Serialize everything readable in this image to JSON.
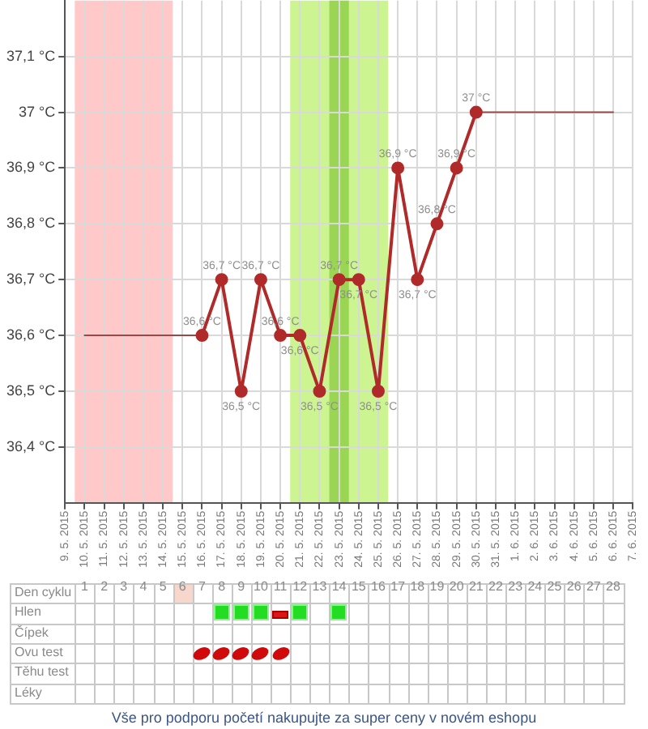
{
  "chart_data": [
    {
      "type": "line",
      "categories": [
        "9. 5. 2015",
        "10. 5. 2015",
        "11. 5. 2015",
        "12. 5. 2015",
        "13. 5. 2015",
        "14. 5. 2015",
        "15. 5. 2015",
        "16. 5. 2015",
        "17. 5. 2015",
        "18. 5. 2015",
        "19. 5. 2015",
        "20. 5. 2015",
        "21. 5. 2015",
        "22. 5. 2015",
        "23. 5. 2015",
        "24. 5. 2015",
        "25. 5. 2015",
        "26. 5. 2015",
        "27. 5. 2015",
        "28. 5. 2015",
        "29. 5. 2015",
        "30. 5. 2015",
        "31. 5. 2015",
        "1. 6. 2015",
        "2. 6. 2015",
        "3. 6. 2015",
        "4. 6. 2015",
        "5. 6. 2015",
        "6. 6. 2015",
        "7. 6. 2015"
      ],
      "series": [
        {
          "color": "#b02a2a",
          "values": [
            null,
            null,
            null,
            null,
            null,
            null,
            null,
            36.6,
            36.7,
            36.5,
            36.7,
            36.6,
            36.6,
            36.5,
            36.7,
            36.7,
            36.5,
            36.9,
            36.7,
            36.8,
            36.9,
            37.0,
            null,
            null,
            null,
            null,
            null,
            null,
            null,
            null
          ],
          "value_labels": [
            null,
            null,
            null,
            null,
            null,
            null,
            null,
            "36,6 °C",
            "36,7 °C",
            "36,5 °C",
            "36,7 °C",
            "36,6 °C",
            "36,6 °C",
            "36,5 °C",
            "36,7 °C",
            "36,7 °C",
            "36,5 °C",
            "36,9 °C",
            "36,7 °C",
            "36,8 °C",
            "36,9 °C",
            "37 °C",
            null,
            null,
            null,
            null,
            null,
            null,
            null,
            null
          ]
        },
        {
          "color": "#9a4848",
          "marker": "none",
          "values": [
            null,
            36.6,
            36.6,
            36.6,
            36.6,
            36.6,
            36.6,
            36.6,
            null,
            null,
            null,
            null,
            null,
            null,
            null,
            null,
            null,
            null,
            null,
            null,
            null,
            null,
            null,
            null,
            null,
            null,
            null,
            null,
            null,
            null
          ]
        },
        {
          "color": "#9a4848",
          "marker": "none",
          "values": [
            null,
            null,
            null,
            null,
            null,
            null,
            null,
            null,
            null,
            null,
            null,
            null,
            null,
            null,
            null,
            null,
            null,
            null,
            null,
            null,
            null,
            37.0,
            37.0,
            37.0,
            37.0,
            37.0,
            37.0,
            37.0,
            37.0,
            null
          ]
        }
      ],
      "ylim": [
        36.3,
        37.2
      ],
      "yticks": [
        {
          "value": 36.4,
          "label": "36,4 °C"
        },
        {
          "value": 36.5,
          "label": "36,5 °C"
        },
        {
          "value": 36.6,
          "label": "36,6 °C"
        },
        {
          "value": 36.7,
          "label": "36,7 °C"
        },
        {
          "value": 36.8,
          "label": "36,8 °C"
        },
        {
          "value": 36.9,
          "label": "36,9 °C"
        },
        {
          "value": 37.0,
          "label": "37 °C"
        },
        {
          "value": 37.1,
          "label": "37,1 °C"
        }
      ],
      "x2label": "Den cyklu",
      "x2lim": [
        0,
        29
      ],
      "x2ticks": [
        1,
        2,
        3,
        4,
        5,
        6,
        7,
        8,
        9,
        10,
        11,
        12,
        13,
        14,
        15,
        16,
        17,
        18,
        19,
        20,
        21,
        22,
        23,
        24,
        25,
        26,
        27,
        28
      ],
      "bands": [
        {
          "axis": "x",
          "from": "10. 5. 2015",
          "to": "14. 5. 2015",
          "color": "#ffc9c9"
        },
        {
          "axis": "x",
          "from": "21. 5. 2015",
          "to": "25. 5. 2015",
          "color": "#ccf592"
        },
        {
          "axis": "x",
          "from": "23. 5. 2015",
          "to": "23. 5. 2015",
          "color": "#9ad654"
        }
      ],
      "grid": true,
      "marker": "circle"
    },
    {
      "type": "other",
      "y_categories": [
        "Hlen",
        "Čípek",
        "Ovu test",
        "Těhu test",
        "Léky"
      ],
      "annotations": [
        "Vše pro podporu početí nakupujte za super ceny v novém eshopu"
      ]
    }
  ]
}
